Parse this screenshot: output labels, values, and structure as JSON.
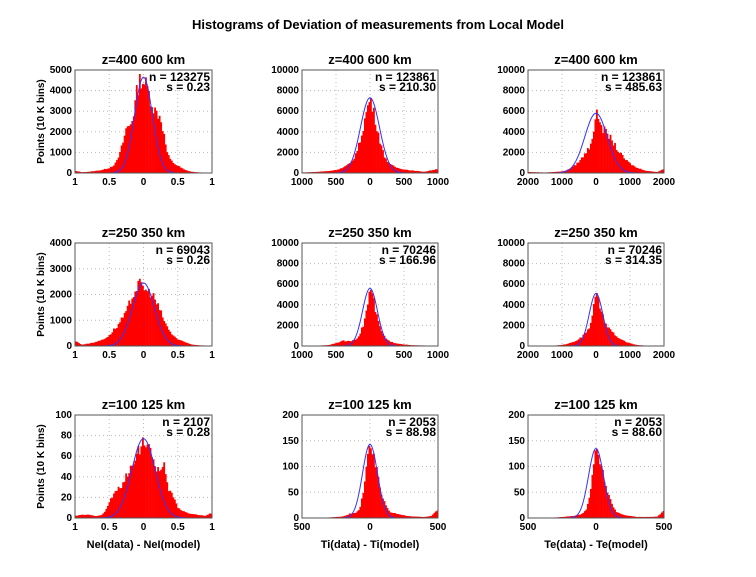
{
  "figure_title": "Histograms of Deviation of measurements from Local Model",
  "chart_data": [
    {
      "type": "bar",
      "row": 0,
      "col": 0,
      "title": "z=400  600 km",
      "ylabel": "Points (10 K bins)",
      "xlabel": "",
      "xlim": [
        -1,
        1
      ],
      "ylim": [
        0,
        5000
      ],
      "xticks": [
        -1,
        -0.5,
        0,
        0.5,
        1
      ],
      "xtick_labels": [
        "1",
        "0.5",
        "0",
        "0.5",
        "1"
      ],
      "yticks": [
        0,
        1000,
        2000,
        3000,
        4000,
        5000
      ],
      "ytick_labels": [
        "0",
        "1000",
        "2000",
        "3000",
        "4000",
        "5000"
      ],
      "annotation": [
        "n = 123275",
        "s = 0.23"
      ],
      "fit": {
        "mean": 0,
        "sigma": 0.13,
        "peak": 4650
      },
      "hist": {
        "x": [
          -1,
          -0.9,
          -0.8,
          -0.7,
          -0.6,
          -0.5,
          -0.45,
          -0.4,
          -0.35,
          -0.3,
          -0.25,
          -0.2,
          -0.15,
          -0.1,
          -0.05,
          0,
          0.05,
          0.1,
          0.15,
          0.2,
          0.25,
          0.3,
          0.35,
          0.4,
          0.45,
          0.5,
          0.6,
          0.7,
          0.8,
          0.9,
          1
        ],
        "y": [
          100,
          40,
          60,
          100,
          150,
          250,
          350,
          500,
          900,
          1500,
          2200,
          2300,
          2800,
          3900,
          4550,
          4450,
          4200,
          3600,
          3100,
          2900,
          2700,
          1800,
          900,
          600,
          450,
          350,
          150,
          60,
          30,
          20,
          10
        ]
      },
      "grid": true
    },
    {
      "type": "bar",
      "row": 0,
      "col": 1,
      "title": "z=400  600 km",
      "ylabel": "",
      "xlabel": "",
      "xlim": [
        -1000,
        1000
      ],
      "ylim": [
        0,
        10000
      ],
      "xticks": [
        -1000,
        -500,
        0,
        500,
        1000
      ],
      "xtick_labels": [
        "1000",
        "500",
        "0",
        "500",
        "1000"
      ],
      "yticks": [
        0,
        2000,
        4000,
        6000,
        8000,
        10000
      ],
      "ytick_labels": [
        "0",
        "2000",
        "4000",
        "6000",
        "8000",
        "10000"
      ],
      "annotation": [
        "n = 123861",
        "s = 210.30"
      ],
      "fit": {
        "mean": 0,
        "sigma": 140,
        "peak": 7300
      },
      "hist": {
        "x": [
          -1000,
          -800,
          -600,
          -500,
          -400,
          -300,
          -250,
          -200,
          -150,
          -100,
          -50,
          0,
          50,
          100,
          150,
          200,
          250,
          300,
          400,
          500,
          600,
          800,
          1000
        ],
        "y": [
          50,
          100,
          200,
          300,
          500,
          900,
          1300,
          2000,
          3000,
          4500,
          6000,
          7300,
          6000,
          4500,
          3000,
          1800,
          1200,
          800,
          500,
          350,
          250,
          120,
          400
        ]
      },
      "grid": true
    },
    {
      "type": "bar",
      "row": 0,
      "col": 2,
      "title": "z=400  600 km",
      "ylabel": "",
      "xlabel": "",
      "xlim": [
        -2000,
        2000
      ],
      "ylim": [
        0,
        10000
      ],
      "xticks": [
        -2000,
        -1000,
        0,
        1000,
        2000
      ],
      "xtick_labels": [
        "2000",
        "1000",
        "0",
        "1000",
        "2000"
      ],
      "yticks": [
        0,
        2000,
        4000,
        6000,
        8000,
        10000
      ],
      "ytick_labels": [
        "0",
        "2000",
        "4000",
        "6000",
        "8000",
        "10000"
      ],
      "annotation": [
        "n = 123861",
        "s = 485.63"
      ],
      "fit": {
        "mean": 0,
        "sigma": 330,
        "peak": 5800
      },
      "hist": {
        "x": [
          -2000,
          -1500,
          -1000,
          -800,
          -600,
          -400,
          -200,
          -100,
          0,
          100,
          200,
          300,
          400,
          500,
          600,
          800,
          1000,
          1200,
          1500,
          1800,
          2000
        ],
        "y": [
          100,
          50,
          150,
          350,
          800,
          1500,
          2500,
          3600,
          5700,
          5300,
          4300,
          3900,
          3500,
          3000,
          2400,
          1500,
          900,
          500,
          200,
          100,
          400
        ]
      },
      "grid": true
    },
    {
      "type": "bar",
      "row": 1,
      "col": 0,
      "title": "z=250  350 km",
      "ylabel": "Points (10 K bins)",
      "xlabel": "",
      "xlim": [
        -1,
        1
      ],
      "ylim": [
        0,
        4000
      ],
      "xticks": [
        -1,
        -0.5,
        0,
        0.5,
        1
      ],
      "xtick_labels": [
        "1",
        "0.5",
        "0",
        "0.5",
        "1"
      ],
      "yticks": [
        0,
        1000,
        2000,
        3000,
        4000
      ],
      "ytick_labels": [
        "0",
        "1000",
        "2000",
        "3000",
        "4000"
      ],
      "annotation": [
        "n = 69043",
        "s = 0.26"
      ],
      "fit": {
        "mean": 0,
        "sigma": 0.16,
        "peak": 2450
      },
      "hist": {
        "x": [
          -1,
          -0.9,
          -0.8,
          -0.7,
          -0.6,
          -0.5,
          -0.45,
          -0.4,
          -0.35,
          -0.3,
          -0.25,
          -0.2,
          -0.15,
          -0.1,
          -0.05,
          0,
          0.05,
          0.1,
          0.15,
          0.2,
          0.25,
          0.3,
          0.35,
          0.4,
          0.5,
          0.6,
          0.7,
          0.8,
          1
        ],
        "y": [
          200,
          50,
          100,
          150,
          250,
          400,
          600,
          700,
          900,
          1100,
          1300,
          1700,
          2000,
          2300,
          2400,
          2300,
          2100,
          2100,
          1900,
          1600,
          1300,
          1000,
          700,
          500,
          250,
          150,
          60,
          30,
          10
        ]
      },
      "grid": true
    },
    {
      "type": "bar",
      "row": 1,
      "col": 1,
      "title": "z=250  350 km",
      "ylabel": "",
      "xlabel": "",
      "xlim": [
        -1000,
        1000
      ],
      "ylim": [
        0,
        10000
      ],
      "xticks": [
        -1000,
        -500,
        0,
        500,
        1000
      ],
      "xtick_labels": [
        "1000",
        "500",
        "0",
        "500",
        "1000"
      ],
      "yticks": [
        0,
        2000,
        4000,
        6000,
        8000,
        10000
      ],
      "ytick_labels": [
        "0",
        "2000",
        "4000",
        "6000",
        "8000",
        "10000"
      ],
      "annotation": [
        "n = 70246",
        "s = 166.96"
      ],
      "fit": {
        "mean": 0,
        "sigma": 110,
        "peak": 5600
      },
      "hist": {
        "x": [
          -1000,
          -800,
          -600,
          -500,
          -400,
          -300,
          -200,
          -150,
          -100,
          -50,
          0,
          50,
          100,
          150,
          200,
          250,
          300,
          400,
          500,
          600,
          800,
          1000
        ],
        "y": [
          0,
          20,
          100,
          300,
          500,
          450,
          700,
          1200,
          2000,
          3500,
          5600,
          4500,
          2800,
          1700,
          1000,
          600,
          400,
          250,
          150,
          80,
          50,
          0
        ]
      },
      "grid": true
    },
    {
      "type": "bar",
      "row": 1,
      "col": 2,
      "title": "z=250  350 km",
      "ylabel": "",
      "xlabel": "",
      "xlim": [
        -2000,
        2000
      ],
      "ylim": [
        0,
        10000
      ],
      "xticks": [
        -2000,
        -1000,
        0,
        1000,
        2000
      ],
      "xtick_labels": [
        "2000",
        "1000",
        "0",
        "1000",
        "2000"
      ],
      "yticks": [
        0,
        2000,
        4000,
        6000,
        8000,
        10000
      ],
      "ytick_labels": [
        "0",
        "2000",
        "4000",
        "6000",
        "8000",
        "10000"
      ],
      "annotation": [
        "n = 70246",
        "s = 314.35"
      ],
      "fit": {
        "mean": 0,
        "sigma": 200,
        "peak": 5100
      },
      "hist": {
        "x": [
          -2000,
          -1500,
          -1200,
          -1000,
          -800,
          -600,
          -400,
          -200,
          -100,
          0,
          100,
          200,
          300,
          400,
          500,
          600,
          800,
          1000,
          1200,
          1500,
          2000
        ],
        "y": [
          0,
          0,
          50,
          100,
          250,
          500,
          900,
          1800,
          3200,
          5000,
          4000,
          2800,
          2000,
          1600,
          1300,
          900,
          500,
          250,
          100,
          30,
          0
        ]
      },
      "grid": true
    },
    {
      "type": "bar",
      "row": 2,
      "col": 0,
      "title": "z=100  125 km",
      "ylabel": "Points (10 K bins)",
      "xlabel": "NeI(data) - NeI(model)",
      "xlim": [
        -1,
        1
      ],
      "ylim": [
        0,
        100
      ],
      "xticks": [
        -1,
        -0.5,
        0,
        0.5,
        1
      ],
      "xtick_labels": [
        "1",
        "0. 5",
        "0",
        "0.5",
        "1"
      ],
      "yticks": [
        0,
        20,
        40,
        60,
        80,
        100
      ],
      "ytick_labels": [
        "0",
        "20",
        "40",
        "60",
        "80",
        "100"
      ],
      "annotation": [
        "n = 2107",
        "s = 0.28"
      ],
      "fit": {
        "mean": 0,
        "sigma": 0.17,
        "peak": 77
      },
      "hist": {
        "x": [
          -1,
          -0.9,
          -0.8,
          -0.7,
          -0.6,
          -0.55,
          -0.5,
          -0.45,
          -0.4,
          -0.35,
          -0.3,
          -0.25,
          -0.2,
          -0.15,
          -0.1,
          -0.05,
          0,
          0.05,
          0.1,
          0.15,
          0.2,
          0.25,
          0.3,
          0.35,
          0.4,
          0.45,
          0.5,
          0.6,
          0.7,
          0.8,
          0.9,
          1
        ],
        "y": [
          2,
          3,
          3,
          2,
          3,
          8,
          15,
          22,
          25,
          30,
          34,
          40,
          45,
          55,
          65,
          68,
          76,
          72,
          62,
          55,
          48,
          45,
          50,
          30,
          25,
          18,
          10,
          6,
          4,
          3,
          2,
          5
        ]
      },
      "grid": true
    },
    {
      "type": "bar",
      "row": 2,
      "col": 1,
      "title": "z=100  125 km",
      "ylabel": "",
      "xlabel": "Ti(data) - Ti(model)",
      "xlim": [
        -500,
        500
      ],
      "ylim": [
        0,
        200
      ],
      "xticks": [
        -500,
        0,
        500
      ],
      "xtick_labels": [
        "500",
        "0",
        "500"
      ],
      "yticks": [
        0,
        50,
        100,
        150,
        200
      ],
      "ytick_labels": [
        "0",
        "50",
        "100",
        "150",
        "200"
      ],
      "annotation": [
        "n = 2053",
        "s = 88.98"
      ],
      "fit": {
        "mean": 0,
        "sigma": 55,
        "peak": 143
      },
      "hist": {
        "x": [
          -500,
          -400,
          -300,
          -200,
          -150,
          -100,
          -75,
          -50,
          -25,
          0,
          25,
          50,
          75,
          100,
          125,
          150,
          200,
          250,
          300,
          400,
          450,
          500
        ],
        "y": [
          0,
          0,
          1,
          3,
          8,
          10,
          20,
          50,
          100,
          140,
          120,
          90,
          55,
          35,
          20,
          12,
          8,
          5,
          3,
          2,
          4,
          16
        ]
      },
      "grid": true
    },
    {
      "type": "bar",
      "row": 2,
      "col": 2,
      "title": "z=100  125 km",
      "ylabel": "",
      "xlabel": "Te(data) - Te(model)",
      "xlim": [
        -500,
        500
      ],
      "ylim": [
        0,
        200
      ],
      "xticks": [
        -500,
        0,
        500
      ],
      "xtick_labels": [
        "500",
        "0",
        "500"
      ],
      "yticks": [
        0,
        50,
        100,
        150,
        200
      ],
      "ytick_labels": [
        "0",
        "50",
        "100",
        "150",
        "200"
      ],
      "annotation": [
        "n = 2053",
        "s = 88.60"
      ],
      "fit": {
        "mean": 0,
        "sigma": 55,
        "peak": 135
      },
      "hist": {
        "x": [
          -500,
          -400,
          -300,
          -200,
          -150,
          -100,
          -75,
          -50,
          -25,
          0,
          25,
          50,
          75,
          100,
          125,
          150,
          200,
          250,
          300,
          400,
          450,
          500
        ],
        "y": [
          0,
          0,
          1,
          3,
          5,
          8,
          15,
          40,
          90,
          130,
          115,
          85,
          60,
          40,
          22,
          12,
          6,
          4,
          2,
          2,
          3,
          14
        ]
      },
      "grid": true
    }
  ]
}
